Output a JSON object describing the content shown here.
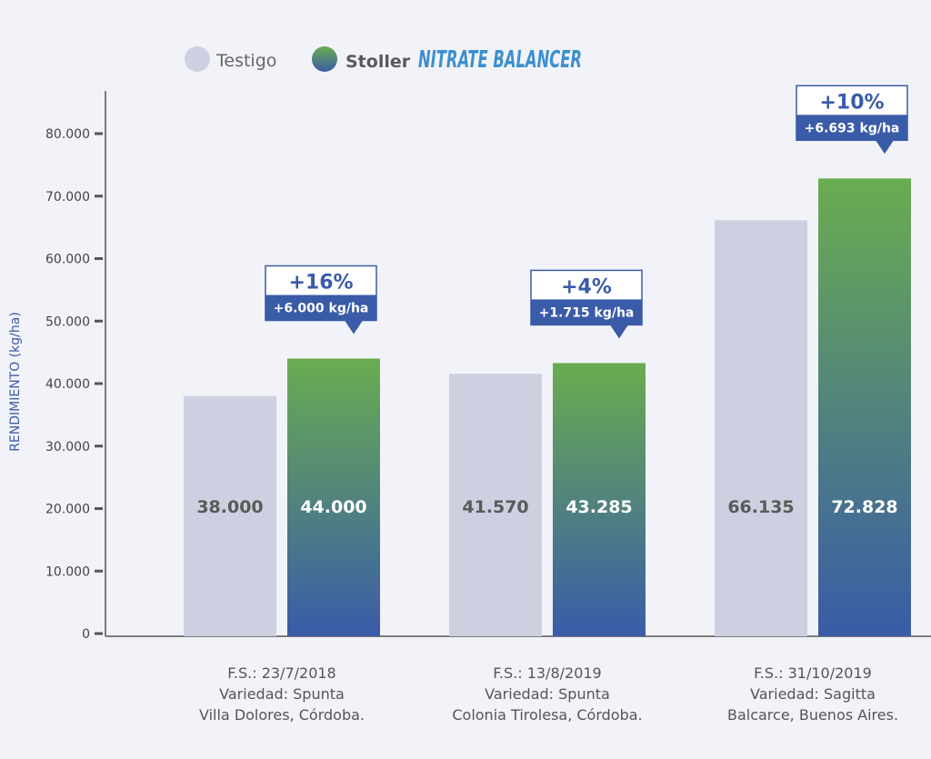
{
  "chart_data": {
    "type": "bar",
    "ylabel": "RENDIMIENTO (kg/ha)",
    "ylim": [
      0,
      80000
    ],
    "yticks": [
      0,
      10000,
      20000,
      30000,
      40000,
      50000,
      60000,
      70000,
      80000
    ],
    "ytick_labels": [
      "0",
      "10.000",
      "20.000",
      "30.000",
      "40.000",
      "50.000",
      "60.000",
      "70.000",
      "80.000"
    ],
    "grid": false,
    "legend_placement": "top-left",
    "categories": [
      [
        "F.S.: 23/7/2018",
        "Variedad: Spunta",
        "Villa Dolores, Córdoba."
      ],
      [
        "F.S.: 13/8/2019",
        "Variedad: Spunta",
        "Colonia Tirolesa, Córdoba."
      ],
      [
        "F.S.: 31/10/2019",
        "Variedad: Sagitta",
        "Balcarce, Buenos Aires."
      ]
    ],
    "series": [
      {
        "name": "Testigo",
        "values": [
          38000,
          41570,
          66135
        ],
        "value_labels": [
          "38.000",
          "41.570",
          "66.135"
        ],
        "color": "#cdd0e0",
        "label_color": "#5a5a5a"
      },
      {
        "name": "Stoller",
        "product": "NITRATE BALANCER",
        "values": [
          44000,
          43285,
          72828
        ],
        "value_labels": [
          "44.000",
          "43.285",
          "72.828"
        ],
        "gradient_top": "#6aac50",
        "gradient_bottom": "#3a5ba8",
        "label_color": "#ffffff"
      }
    ],
    "annotations": [
      {
        "category": 0,
        "percent": "+16%",
        "amount": "+6.000 kg/ha"
      },
      {
        "category": 1,
        "percent": "+4%",
        "amount": "+1.715 kg/ha"
      },
      {
        "category": 2,
        "percent": "+10%",
        "amount": "+6.693 kg/ha"
      }
    ],
    "colors": {
      "axis": "#555555",
      "ylabel": "#3b5da8",
      "annotation_border": "#3a5ba8",
      "annotation_fill": "#3a5ba8",
      "annotation_percent_text": "#3a5ba8",
      "category_text": "#555555",
      "product_text": "#3b8fd0"
    }
  }
}
